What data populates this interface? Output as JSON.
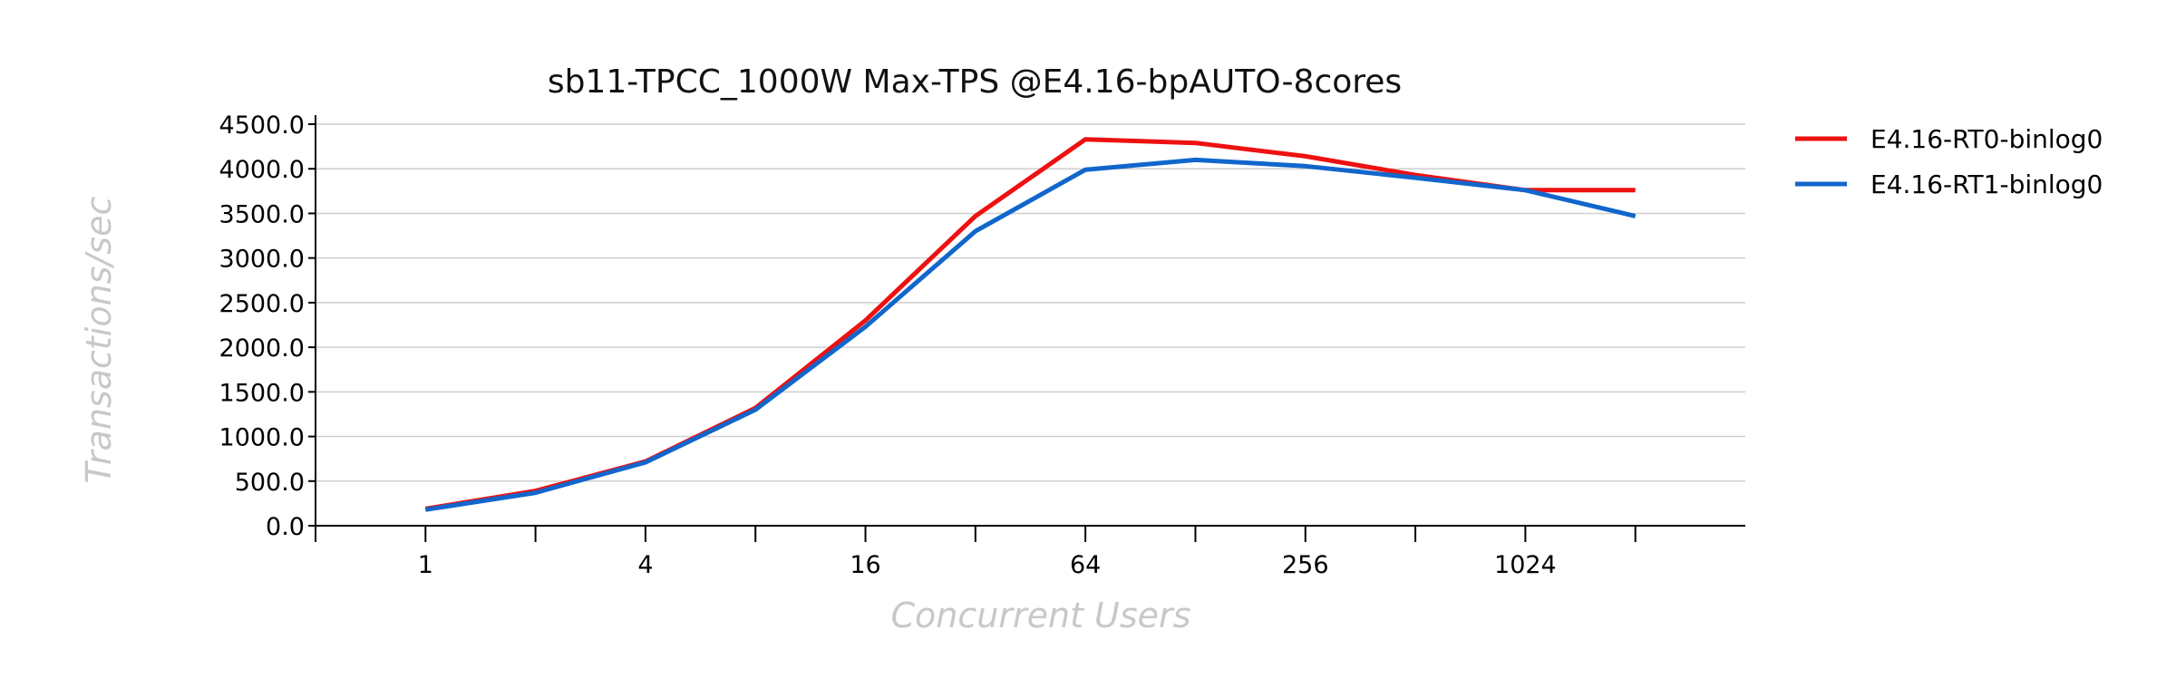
{
  "chart_data": {
    "type": "line",
    "title": "sb11-TPCC_1000W Max-TPS @E4.16-bpAUTO-8cores",
    "xlabel": "Concurrent Users",
    "ylabel": "Transactions/sec",
    "x": [
      1,
      2,
      4,
      8,
      16,
      32,
      64,
      128,
      256,
      512,
      1024,
      2048
    ],
    "x_scale": "log2",
    "xlim": [
      0.5,
      4096
    ],
    "x_tick_labels": [
      "1",
      "4",
      "16",
      "64",
      "256",
      "1024"
    ],
    "x_tick_label_values": [
      1,
      4,
      16,
      64,
      256,
      1024
    ],
    "ylim": [
      0,
      4500
    ],
    "y_ticks": [
      0,
      500,
      1000,
      1500,
      2000,
      2500,
      3000,
      3500,
      4000,
      4500
    ],
    "y_tick_labels": [
      "0.0",
      "500.0",
      "1000.0",
      "1500.0",
      "2000.0",
      "2500.0",
      "3000.0",
      "3500.0",
      "4000.0",
      "4500.0"
    ],
    "grid": "horizontal",
    "legend_position": "right",
    "series": [
      {
        "name": "E4.16-RT0-binlog0",
        "color": "#ee1111",
        "values": [
          190,
          390,
          720,
          1320,
          2300,
          3470,
          4330,
          4290,
          4140,
          3930,
          3760,
          3760
        ]
      },
      {
        "name": "E4.16-RT1-binlog0",
        "color": "#1166cc",
        "values": [
          180,
          370,
          710,
          1300,
          2230,
          3300,
          3990,
          4100,
          4030,
          3900,
          3760,
          3470
        ]
      }
    ]
  }
}
